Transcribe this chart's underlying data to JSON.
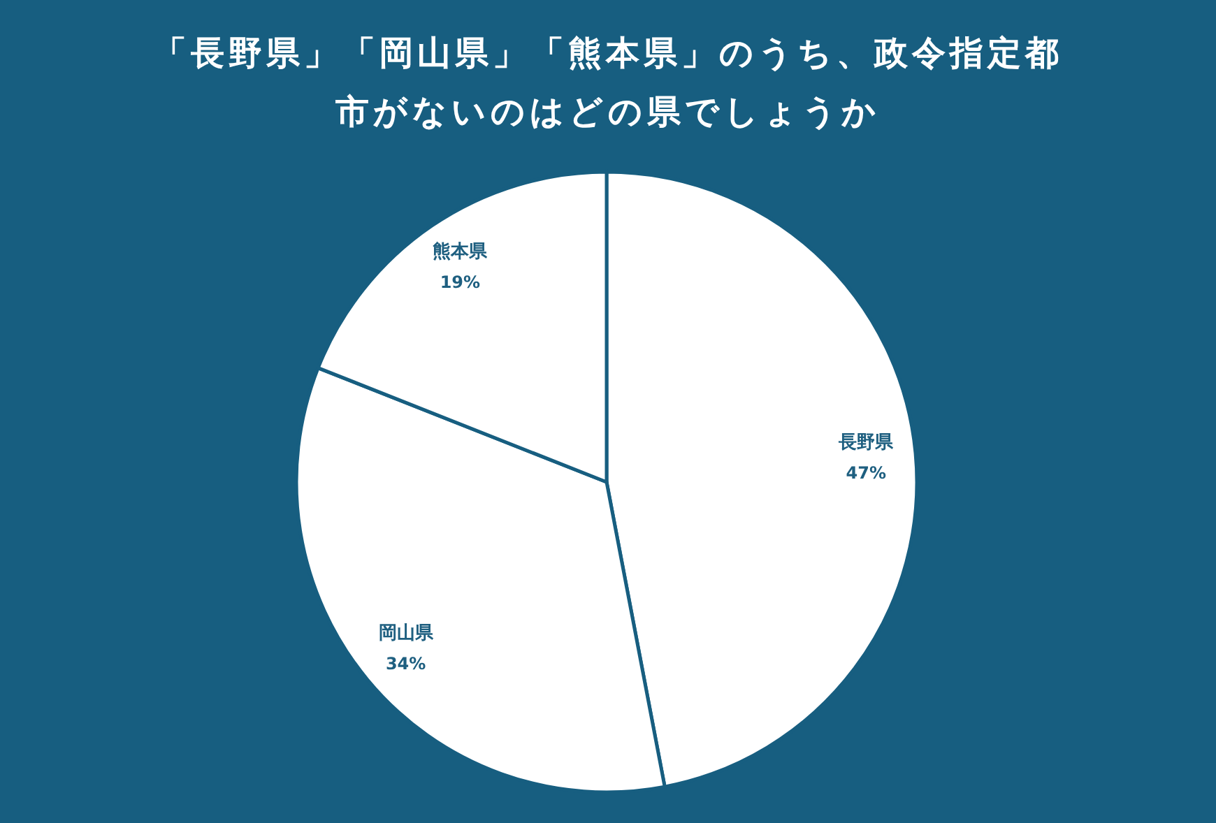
{
  "chart_data": {
    "type": "pie",
    "title": "「長野県」「岡山県」「熊本県」のうち、政令指定都市がないのはどの県でしょうか",
    "categories": [
      "長野県",
      "岡山県",
      "熊本県"
    ],
    "values": [
      47,
      34,
      19
    ],
    "colors": [
      "#ffffff",
      "#ffffff",
      "#ffffff"
    ],
    "value_labels": [
      "47%",
      "34%",
      "19%"
    ]
  }
}
